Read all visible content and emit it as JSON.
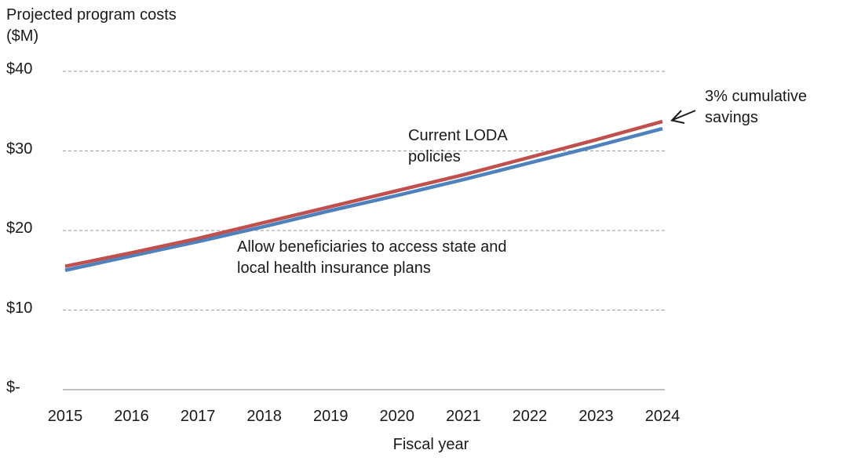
{
  "chart_data": {
    "type": "line",
    "ylabel": "Projected program costs ($M)",
    "xlabel": "Fiscal year",
    "x": [
      2015,
      2016,
      2017,
      2018,
      2019,
      2020,
      2021,
      2022,
      2023,
      2024
    ],
    "ylim": [
      0,
      40
    ],
    "yticks": [
      0,
      10,
      20,
      30,
      40
    ],
    "ytick_labels": [
      "$-",
      "$10",
      "$20",
      "$30",
      "$40"
    ],
    "grid": "horizontal dashed",
    "series": [
      {
        "annotation": "Current LODA policies",
        "color": "#c0504d",
        "values": [
          15.5,
          17.2,
          19.0,
          21.0,
          23.0,
          25.0,
          27.0,
          29.2,
          31.4,
          33.7
        ]
      },
      {
        "annotation": "Allow beneficiaries to access state and local health insurance plans",
        "color": "#4f81bd",
        "values": [
          15.0,
          16.8,
          18.6,
          20.5,
          22.5,
          24.4,
          26.4,
          28.5,
          30.6,
          32.8
        ]
      }
    ],
    "annotations": {
      "savings": "3% cumulative savings",
      "current": "Current LODA policies",
      "allow": "Allow beneficiaries to access state and local health insurance plans"
    }
  }
}
